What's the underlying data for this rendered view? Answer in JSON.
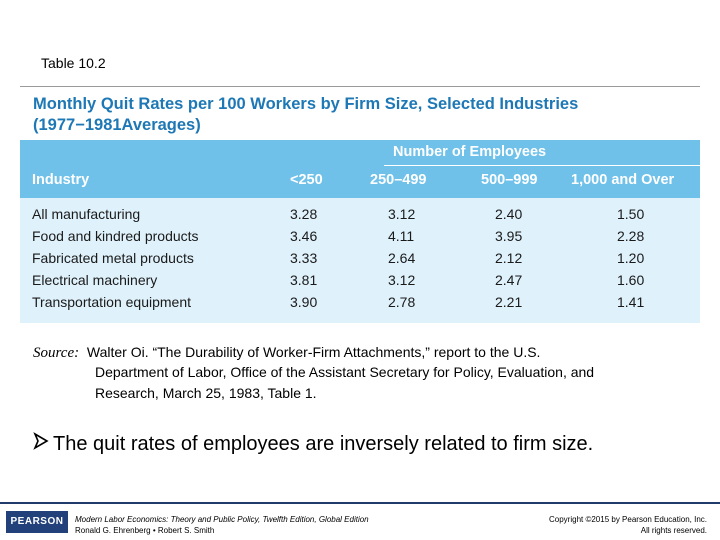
{
  "slide": {
    "table_label": "Table 10.2",
    "title_line1": "Monthly Quit Rates per 100 Workers by Firm Size, Selected Industries",
    "title_line2": "(1977−1981Averages)"
  },
  "table": {
    "group_header": "Number of Employees",
    "columns": [
      "Industry",
      "<250",
      "250–499",
      "500–999",
      "1,000 and Over"
    ],
    "rows": [
      [
        "All manufacturing",
        "3.28",
        "3.12",
        "2.40",
        "1.50"
      ],
      [
        "Food and kindred products",
        "3.46",
        "4.11",
        "3.95",
        "2.28"
      ],
      [
        "Fabricated metal products",
        "3.33",
        "2.64",
        "2.12",
        "1.20"
      ],
      [
        "Electrical machinery",
        "3.81",
        "3.12",
        "2.47",
        "1.60"
      ],
      [
        "Transportation equipment",
        "3.90",
        "2.78",
        "2.21",
        "1.41"
      ]
    ]
  },
  "source": {
    "label": "Source:",
    "line1": "Walter Oi. “The Durability of Worker-Firm Attachments,” report to the U.S.",
    "line2": "Department of Labor, Office of the Assistant Secretary for Policy, Evaluation, and",
    "line3": "Research, March 25, 1983, Table 1."
  },
  "bullet": {
    "icon": "arrow-bullet-icon",
    "text": "The quit rates of employees are inversely related to firm size."
  },
  "footer": {
    "logo": "PEARSON",
    "book_title": "Modern Labor Economics: Theory and Public Policy, Twelfth Edition, Global Edition",
    "authors": "Ronald G. Ehrenberg • Robert S. Smith",
    "copyright": "Copyright ©2015 by Pearson Education, Inc.",
    "rights": "All rights reserved."
  }
}
